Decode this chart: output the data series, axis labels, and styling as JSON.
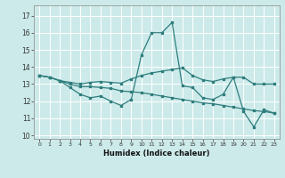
{
  "title": "",
  "xlabel": "Humidex (Indice chaleur)",
  "ylabel": "",
  "background_color": "#cdeaea",
  "grid_color": "#ffffff",
  "line_color": "#2e7d7d",
  "xlim": [
    -0.5,
    23.5
  ],
  "ylim": [
    9.8,
    17.6
  ],
  "yticks": [
    10,
    11,
    12,
    13,
    14,
    15,
    16,
    17
  ],
  "xticks": [
    0,
    1,
    2,
    3,
    4,
    5,
    6,
    7,
    8,
    9,
    10,
    11,
    12,
    13,
    14,
    15,
    16,
    17,
    18,
    19,
    20,
    21,
    22,
    23
  ],
  "series": [
    [
      13.5,
      13.4,
      13.2,
      12.8,
      12.4,
      12.2,
      12.3,
      12.0,
      11.75,
      12.1,
      14.7,
      16.0,
      16.0,
      16.6,
      12.9,
      12.8,
      12.2,
      12.1,
      12.4,
      13.4,
      11.4,
      10.5,
      11.5,
      11.3
    ],
    [
      13.5,
      13.4,
      13.2,
      13.1,
      13.0,
      13.1,
      13.15,
      13.1,
      13.05,
      13.3,
      13.5,
      13.65,
      13.75,
      13.85,
      13.95,
      13.5,
      13.25,
      13.15,
      13.3,
      13.4,
      13.4,
      13.0,
      13.0,
      13.0
    ],
    [
      13.5,
      13.4,
      13.2,
      13.0,
      12.85,
      12.85,
      12.8,
      12.75,
      12.6,
      12.55,
      12.5,
      12.4,
      12.3,
      12.2,
      12.1,
      12.0,
      11.9,
      11.85,
      11.75,
      11.65,
      11.55,
      11.45,
      11.4,
      11.3
    ]
  ]
}
